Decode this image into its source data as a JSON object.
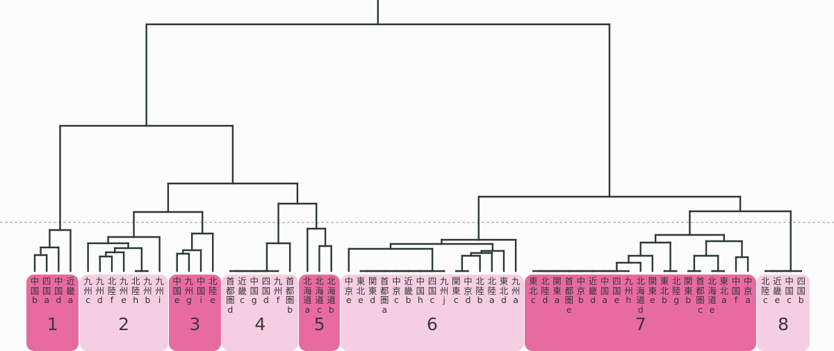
{
  "chart_data": {
    "type": "dendrogram",
    "title": "",
    "line_color": "#2b3636",
    "cut_line_color": "#a58a8a",
    "cut_height": 7.0,
    "height_range": [
      0,
      39
    ],
    "cluster_colors": {
      "dark": "#e86b9f",
      "light": "#f5cfe1"
    },
    "clusters": [
      {
        "label": "1",
        "shade": "dark",
        "leaves": [
          "中国b",
          "四国a",
          "中国d",
          "近畿a"
        ]
      },
      {
        "label": "2",
        "shade": "light",
        "leaves": [
          "九州c",
          "九州d",
          "北陸f",
          "九州e",
          "北陸h",
          "九州b",
          "九州i"
        ]
      },
      {
        "label": "3",
        "shade": "dark",
        "leaves": [
          "中国e",
          "九州g",
          "中国i",
          "北陸e"
        ]
      },
      {
        "label": "4",
        "shade": "light",
        "leaves": [
          "首都圏d",
          "近畿c",
          "中国g",
          "四国d",
          "九州f",
          "首都圏b"
        ]
      },
      {
        "label": "5",
        "shade": "dark",
        "leaves": [
          "北海道a",
          "北海道c",
          "北海道b"
        ]
      },
      {
        "label": "6",
        "shade": "light",
        "leaves": [
          "中京e",
          "東北e",
          "関東d",
          "首都圏a",
          "中京c",
          "近畿b",
          "中国h",
          "四国c",
          "九州j",
          "関東c",
          "中京d",
          "北陸b",
          "北陸a",
          "東北d",
          "九州a"
        ]
      },
      {
        "label": "7",
        "shade": "dark",
        "leaves": [
          "東北c",
          "北陸d",
          "関東a",
          "首都圏e",
          "中京b",
          "近畿d",
          "中国a",
          "四国e",
          "九州h",
          "北海道d",
          "関東e",
          "東北b",
          "北陸g",
          "関東b",
          "首都圏c",
          "北海道e",
          "東北a",
          "中国f",
          "中京a"
        ]
      },
      {
        "label": "8",
        "shade": "light",
        "leaves": [
          "北陸c",
          "近畿e",
          "中国c",
          "四国b"
        ]
      }
    ],
    "tree": {
      "h": 35.5,
      "c": [
        {
          "h": 20.9,
          "c": [
            {
              "h": 5.9,
              "c": [
                {
                  "h": 3.4,
                  "c": [
                    {
                      "h": 2.3,
                      "c": [
                        "中国b",
                        "四国a"
                      ]
                    },
                    "中国d"
                  ]
                },
                "近畿a"
              ]
            },
            {
              "h": 12.6,
              "c": [
                {
                  "h": 8.5,
                  "c": [
                    {
                      "h": 4.9,
                      "c": [
                        {
                          "h": 4.0,
                          "c": [
                            "九州c",
                            {
                              "h": 3.3,
                              "c": [
                                {
                                  "h": 2.7,
                                  "c": [
                                    {
                                      "h": 2.1,
                                      "c": [
                                        "九州d",
                                        "北陸f"
                                      ]
                                    },
                                    "九州e"
                                  ]
                                },
                                {
                                  "h": 0,
                                  "c": [
                                    "北陸h",
                                    "九州b"
                                  ]
                                }
                              ]
                            }
                          ]
                        },
                        "九州i"
                      ]
                    },
                    {
                      "h": 5.4,
                      "c": [
                        {
                          "h": 3.0,
                          "c": [
                            {
                              "h": 2.5,
                              "c": [
                                "中国e",
                                "九州g"
                              ]
                            },
                            "中国i"
                          ]
                        },
                        "北陸e"
                      ]
                    }
                  ]
                },
                {
                  "h": 9.7,
                  "c": [
                    {
                      "h": 4.0,
                      "c": [
                        {
                          "h": 0,
                          "c": [
                            {
                              "h": 0,
                              "c": [
                                {
                                  "h": 0,
                                  "c": [
                                    {
                                      "h": 0,
                                      "c": [
                                        "首都圏d",
                                        "近畿c"
                                      ]
                                    },
                                    "中国g"
                                  ]
                                },
                                "四国d"
                              ]
                            },
                            "九州f"
                          ]
                        },
                        "首都圏b"
                      ]
                    },
                    {
                      "h": 6.1,
                      "c": [
                        "北海道a",
                        {
                          "h": 3.6,
                          "c": [
                            "北海道c",
                            "北海道b"
                          ]
                        }
                      ]
                    }
                  ]
                }
              ]
            }
          ]
        },
        {
          "h": 10.7,
          "c": [
            {
              "h": 4.5,
              "c": [
                {
                  "h": 3.9,
                  "c": [
                    {
                      "h": 3.2,
                      "c": [
                        "中京e",
                        {
                          "h": 0,
                          "c": [
                            {
                              "h": 0,
                              "c": [
                                {
                                  "h": 0,
                                  "c": [
                                    {
                                      "h": 0,
                                      "c": [
                                        {
                                          "h": 0,
                                          "c": [
                                            {
                                              "h": 0,
                                              "c": [
                                                {
                                                  "h": 0,
                                                  "c": [
                                                    "東北e",
                                                    "関東d"
                                                  ]
                                                },
                                                "首都圏a"
                                              ]
                                            },
                                            "中京c"
                                          ]
                                        },
                                        "近畿b"
                                      ]
                                    },
                                    "中国h"
                                  ]
                                },
                                "四国c"
                              ]
                            },
                            "九州j"
                          ]
                        }
                      ]
                    },
                    {
                      "h": 2.9,
                      "c": [
                        {
                          "h": 2.6,
                          "c": [
                            {
                              "h": 2.2,
                              "c": [
                                {
                                  "h": 0,
                                  "c": [
                                    "関東c",
                                    "中京d"
                                  ]
                                },
                                "北陸b"
                              ]
                            },
                            "北陸a"
                          ]
                        },
                        "東北d"
                      ]
                    }
                  ]
                },
                "九州a"
              ]
            },
            {
              "h": 8.6,
              "c": [
                {
                  "h": 5.2,
                  "c": [
                    {
                      "h": 4.1,
                      "c": [
                        {
                          "h": 2.2,
                          "c": [
                            {
                              "h": 1.2,
                              "c": [
                                {
                                  "h": 0,
                                  "c": [
                                    {
                                      "h": 0,
                                      "c": [
                                        {
                                          "h": 0,
                                          "c": [
                                            {
                                              "h": 0,
                                              "c": [
                                                {
                                                  "h": 0,
                                                  "c": [
                                                    {
                                                      "h": 0,
                                                      "c": [
                                                        {
                                                          "h": 0,
                                                          "c": [
                                                            {
                                                              "h": 0,
                                                              "c": [
                                                                "東北c",
                                                                "北陸d"
                                                              ]
                                                            },
                                                            "関東a"
                                                          ]
                                                        },
                                                        "首都圏e"
                                                      ]
                                                    },
                                                    "中京b"
                                                  ]
                                                },
                                                "近畿d"
                                              ]
                                            },
                                            "中国a"
                                          ]
                                        },
                                        "四国e"
                                      ]
                                    },
                                    "九州h"
                                  ]
                                },
                                "北海道d"
                              ]
                            },
                            "関東e"
                          ]
                        },
                        {
                          "h": 0,
                          "c": [
                            "東北b",
                            "北陸g"
                          ]
                        }
                      ]
                    },
                    {
                      "h": 4.3,
                      "c": [
                        {
                          "h": 2.2,
                          "c": [
                            {
                              "h": 0,
                              "c": [
                                "関東b",
                                "首都圏c"
                              ]
                            },
                            {
                              "h": 0,
                              "c": [
                                "北海道e",
                                "東北a"
                              ]
                            }
                          ]
                        },
                        {
                          "h": 2.0,
                          "c": [
                            "中国f",
                            "中京a"
                          ]
                        }
                      ]
                    }
                  ]
                },
                {
                  "h": 0,
                  "c": [
                    {
                      "h": 0,
                      "c": [
                        {
                          "h": 0,
                          "c": [
                            "北陸c",
                            "近畿e"
                          ]
                        },
                        "中国c"
                      ]
                    },
                    "四国b"
                  ]
                }
              ]
            }
          ]
        }
      ]
    }
  }
}
